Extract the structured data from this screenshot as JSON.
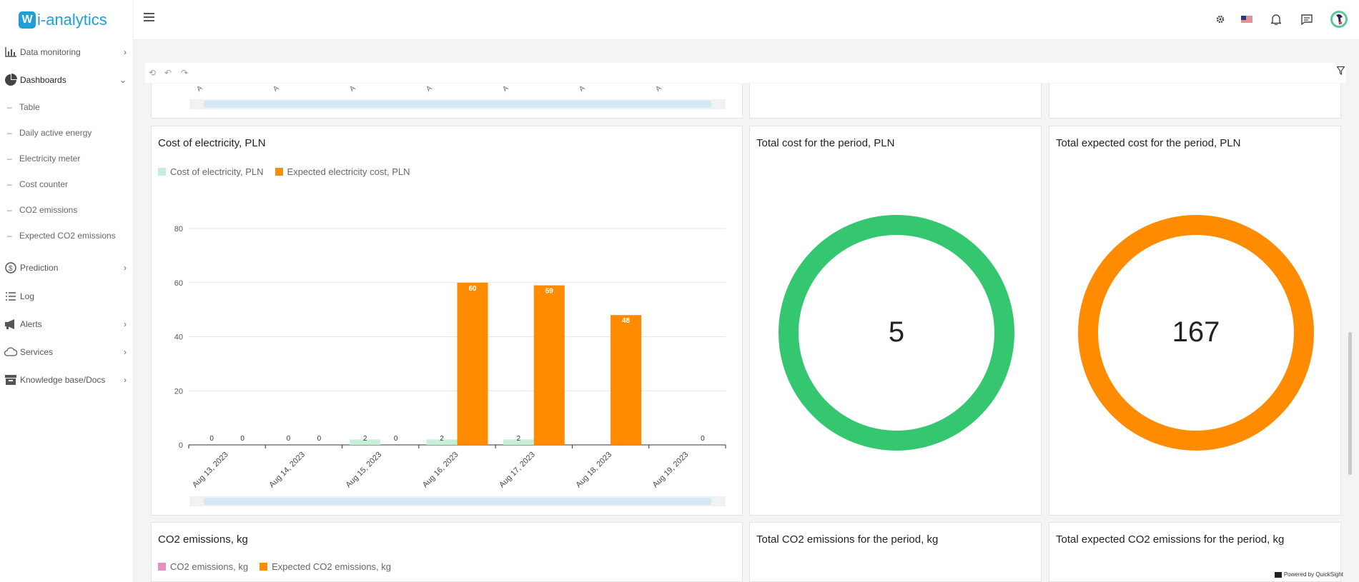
{
  "app": {
    "badge": "W",
    "name": "i-analytics"
  },
  "sidebar": {
    "items": [
      {
        "label": "Data monitoring",
        "icon": "bar-chart-icon",
        "chevron": "›"
      },
      {
        "label": "Dashboards",
        "icon": "pie-chart-icon",
        "chevron": "⌄"
      },
      {
        "label": "Prediction",
        "icon": "coin-icon",
        "chevron": "›"
      },
      {
        "label": "Log",
        "icon": "list-icon",
        "chevron": ""
      },
      {
        "label": "Alerts",
        "icon": "megaphone-icon",
        "chevron": "›"
      },
      {
        "label": "Services",
        "icon": "cloud-icon",
        "chevron": "›"
      },
      {
        "label": "Knowledge base/Docs",
        "icon": "archive-icon",
        "chevron": "›"
      }
    ],
    "dashboard_sub": [
      {
        "label": "Table"
      },
      {
        "label": "Daily active energy"
      },
      {
        "label": "Electricity meter"
      },
      {
        "label": "Cost counter"
      },
      {
        "label": "CO2 emissions"
      },
      {
        "label": "Expected CO2 emissions"
      }
    ]
  },
  "topbar": {
    "icons": [
      "gear-icon",
      "us-flag-icon",
      "bell-icon",
      "chat-icon",
      "avatar"
    ]
  },
  "panels": {
    "cost_chart": {
      "title": "Cost of electricity, PLN",
      "legend": [
        {
          "label": "Cost of electricity, PLN",
          "color": "#c6efd8"
        },
        {
          "label": "Expected electricity cost, PLN",
          "color": "#ff8c00"
        }
      ]
    },
    "total_cost": {
      "title": "Total cost for the period, PLN",
      "value": "5",
      "color": "#34c770"
    },
    "total_expected": {
      "title": "Total expected cost for the period, PLN",
      "value": "167",
      "color": "#ff8c00"
    },
    "co2_chart": {
      "title": "CO2 emissions, kg",
      "legend": [
        {
          "label": "CO2 emissions, kg",
          "color": "#e98ec0"
        },
        {
          "label": "Expected CO2 emissions, kg",
          "color": "#ff8c00"
        }
      ]
    },
    "total_co2": {
      "title": "Total CO2 emissions for the period, kg"
    },
    "total_expected_co2": {
      "title": "Total expected CO2 emissions for the period, kg"
    }
  },
  "top_chart_ticks": [
    "A",
    "A",
    "A",
    "A",
    "A",
    "A",
    "A"
  ],
  "chart_data": {
    "type": "bar",
    "title": "Cost of electricity, PLN",
    "categories": [
      "Aug 13, 2023",
      "Aug 14, 2023",
      "Aug 15, 2023",
      "Aug 16, 2023",
      "Aug 17, 2023",
      "Aug 18, 2023",
      "Aug 19, 2023"
    ],
    "series": [
      {
        "name": "Cost of electricity, PLN",
        "values": [
          0,
          0,
          2,
          2,
          2,
          null,
          null
        ],
        "labels": [
          "0",
          "0",
          "2",
          "2",
          "2",
          "",
          ""
        ],
        "color": "#c6efd8"
      },
      {
        "name": "Expected electricity cost, PLN",
        "values": [
          0,
          0,
          0,
          60,
          59,
          48,
          0
        ],
        "labels": [
          "0",
          "0",
          "0",
          "60",
          "59",
          "48",
          "0"
        ],
        "color": "#ff8c00"
      }
    ],
    "yticks": [
      "0",
      "20",
      "40",
      "60",
      "80"
    ],
    "ylim": [
      0,
      80
    ],
    "grid": true,
    "legend": "top-left"
  },
  "footer": {
    "powered": "Powered by QuickSight"
  }
}
